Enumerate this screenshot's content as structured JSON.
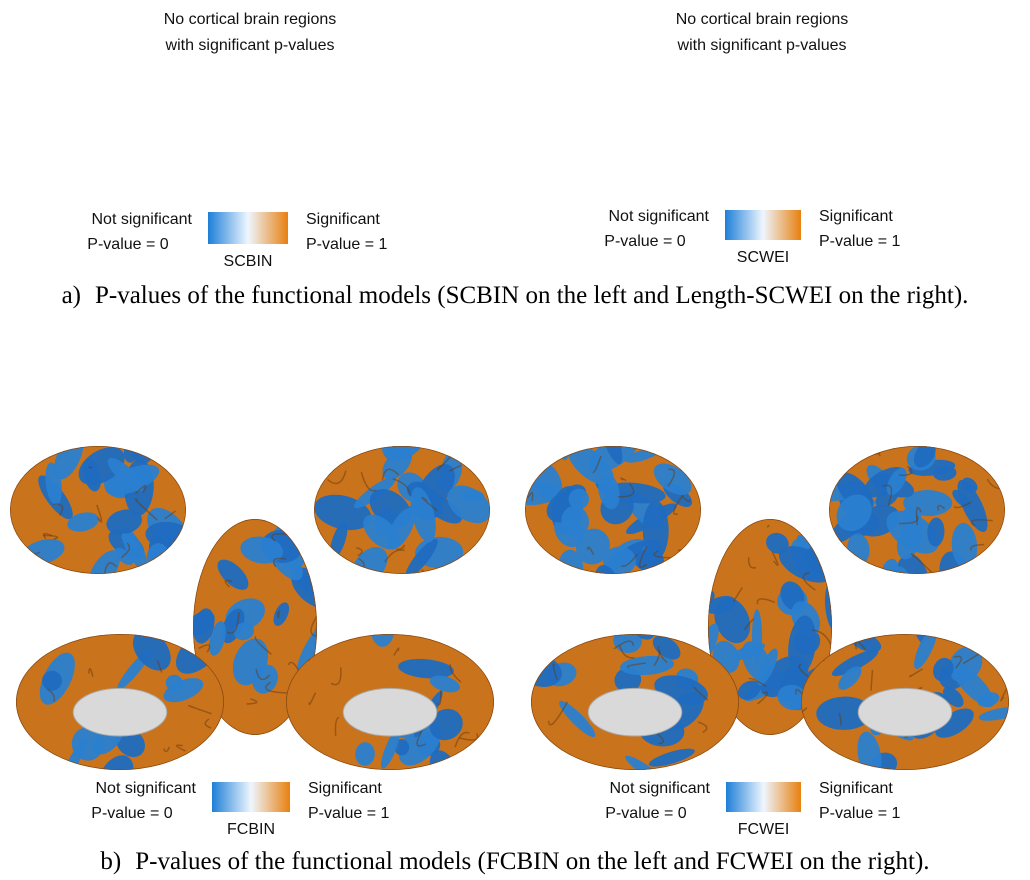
{
  "panel_a": {
    "left": {
      "note": [
        "No cortical brain regions",
        "with significant p-values"
      ],
      "legend": {
        "low_label": "Not significant",
        "low_value": "P-value = 0",
        "high_label": "Significant",
        "high_value": "P-value = 1",
        "model": "SCBIN"
      }
    },
    "right": {
      "note": [
        "No cortical brain regions",
        "with significant p-values"
      ],
      "legend": {
        "low_label": "Not significant",
        "low_value": "P-value = 0",
        "high_label": "Significant",
        "high_value": "P-value = 1",
        "model": "SCWEI"
      }
    },
    "caption": {
      "label": "a)",
      "text": "P-values of the functional models (SCBIN on the left and Length-SCWEI on the right)."
    }
  },
  "panel_b": {
    "left": {
      "legend": {
        "low_label": "Not significant",
        "low_value": "P-value = 0",
        "high_label": "Significant",
        "high_value": "P-value = 1",
        "model": "FCBIN"
      }
    },
    "right": {
      "legend": {
        "low_label": "Not significant",
        "low_value": "P-value = 0",
        "high_label": "Significant",
        "high_value": "P-value = 1",
        "model": "FCWEI"
      }
    },
    "caption": {
      "label": "b)",
      "text": "P-values of the functional models (FCBIN on the left and FCWEI on the right)."
    }
  }
}
